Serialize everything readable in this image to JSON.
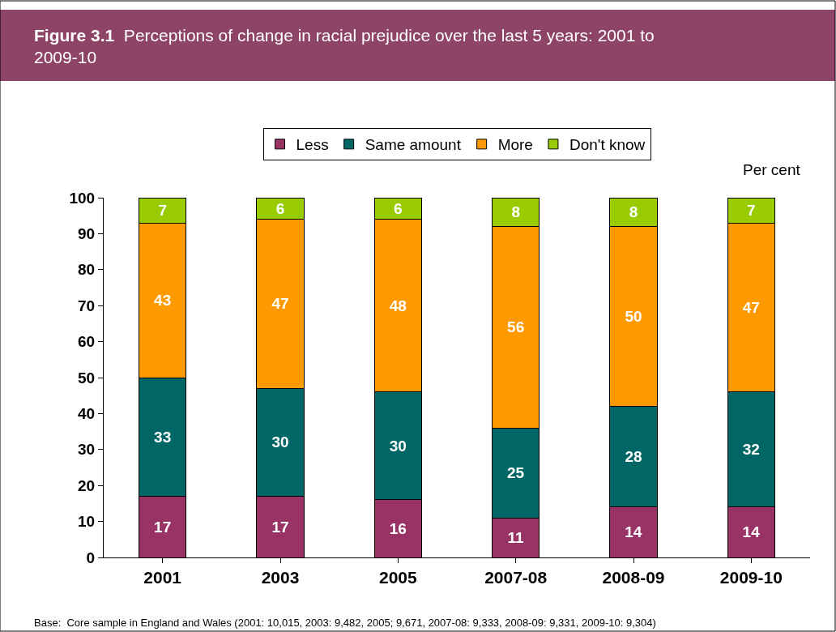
{
  "chart_data": {
    "type": "bar",
    "stacked": true,
    "title": "Figure 3.1  Perceptions of change in racial prejudice over the last 5 years: 2001 to 2009-10",
    "ylabel": "Per cent",
    "categories": [
      "2001",
      "2003",
      "2005",
      "2007-08",
      "2008-09",
      "2009-10"
    ],
    "series": [
      {
        "name": "Less",
        "color": "#993366",
        "values": [
          17,
          17,
          16,
          11,
          14,
          14
        ]
      },
      {
        "name": "Same amount",
        "color": "#006666",
        "values": [
          33,
          30,
          30,
          25,
          28,
          32
        ]
      },
      {
        "name": "More",
        "color": "#FF9900",
        "values": [
          43,
          47,
          48,
          56,
          50,
          47
        ]
      },
      {
        "name": "Don't know",
        "color": "#99CC00",
        "values": [
          7,
          6,
          6,
          8,
          8,
          7
        ]
      }
    ],
    "ylim": [
      0,
      100
    ],
    "yticks": [
      0,
      10,
      20,
      30,
      40,
      50,
      60,
      70,
      80,
      90,
      100
    ],
    "legend": "top",
    "data_labels": true,
    "annotations": [
      "Base:  Core sample in England and Wales (2001: 10,015, 2003: 9,482, 2005; 9,671, 2007-08: 9,333, 2008-09: 9,331, 2009-10: 9,304)"
    ]
  }
}
